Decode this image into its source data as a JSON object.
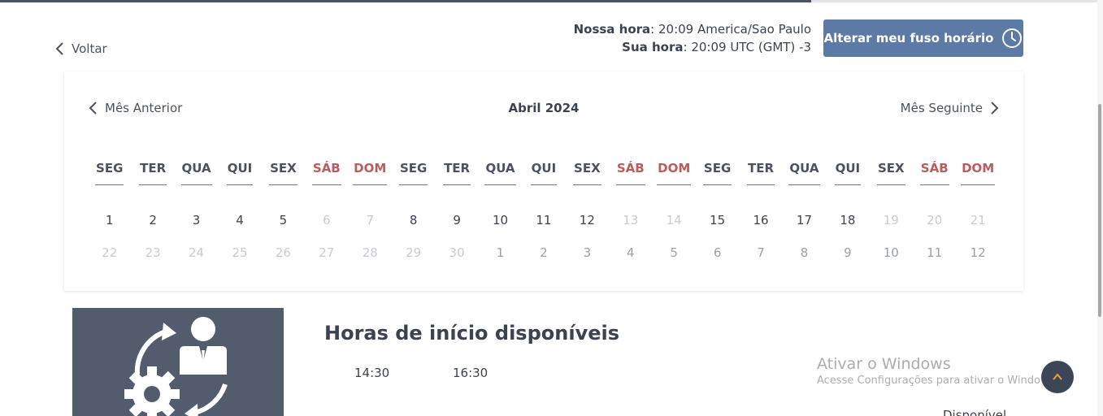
{
  "header": {
    "back_label": "Voltar",
    "our_time_label": "Nossa hora",
    "our_time_value": ": 20:09 America/Sao Paulo",
    "your_time_label": "Sua hora",
    "your_time_value": ": 20:09 UTC (GMT) -3",
    "timezone_button_label": "Alterar meu fuso horário"
  },
  "calendar": {
    "prev_label": "Mês Anterior",
    "month_label": "Abril 2024",
    "next_label": "Mês Seguinte",
    "weekdays": [
      "SEG",
      "TER",
      "QUA",
      "QUI",
      "SEX",
      "SÁB",
      "DOM",
      "SEG",
      "TER",
      "QUA",
      "QUI",
      "SEX",
      "SÁB",
      "DOM",
      "SEG",
      "TER",
      "QUA",
      "QUI",
      "SEX",
      "SÁB",
      "DOM"
    ],
    "weekend_color": "#b85c5c",
    "rows": [
      [
        "1",
        "2",
        "3",
        "4",
        "5",
        "6",
        "7",
        "8",
        "9",
        "10",
        "11",
        "12",
        "13",
        "14",
        "15",
        "16",
        "17",
        "18",
        "19",
        "20",
        "21"
      ],
      [
        "22",
        "23",
        "24",
        "25",
        "26",
        "27",
        "28",
        "29",
        "30",
        "1",
        "2",
        "3",
        "4",
        "5",
        "6",
        "7",
        "8",
        "9",
        "10",
        "11",
        "12"
      ]
    ]
  },
  "hours": {
    "title": "Horas de início disponíveis",
    "slots": [
      "14:30",
      "16:30"
    ]
  },
  "watermark": {
    "title": "Ativar o Windows",
    "subtitle": "Acesse Configurações para ativar o Windows."
  },
  "partial_text": "Disponível",
  "colors": {
    "button_bg": "#5d7aa6",
    "image_bg": "#525c6c"
  }
}
